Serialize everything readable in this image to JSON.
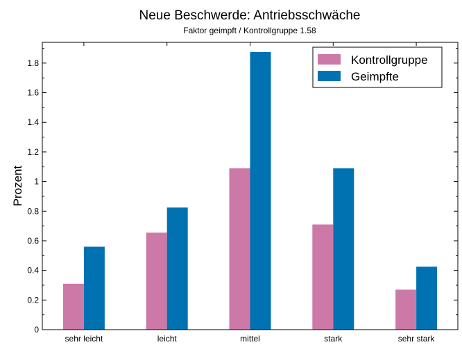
{
  "chart_data": {
    "type": "bar",
    "title": "Neue Beschwerde: Antriebsschwäche",
    "subtitle": "Faktor geimpft / Kontrollgruppe 1.58",
    "xlabel": "",
    "ylabel": "Prozent",
    "categories": [
      "sehr leicht",
      "leicht",
      "mittel",
      "stark",
      "sehr stark"
    ],
    "series": [
      {
        "name": "Kontrollgruppe",
        "color": "#cc79a7",
        "values": [
          0.31,
          0.655,
          1.09,
          0.71,
          0.27
        ]
      },
      {
        "name": "Geimpfte",
        "color": "#0072b2",
        "values": [
          0.56,
          0.825,
          1.875,
          1.09,
          0.425
        ]
      }
    ],
    "ylim": [
      0,
      1.94
    ],
    "yticks": [
      "0",
      "0.2",
      "0.4",
      "0.6",
      "0.8",
      "1",
      "1.2",
      "1.4",
      "1.6",
      "1.8"
    ],
    "legend": "top-right",
    "grid": false
  }
}
